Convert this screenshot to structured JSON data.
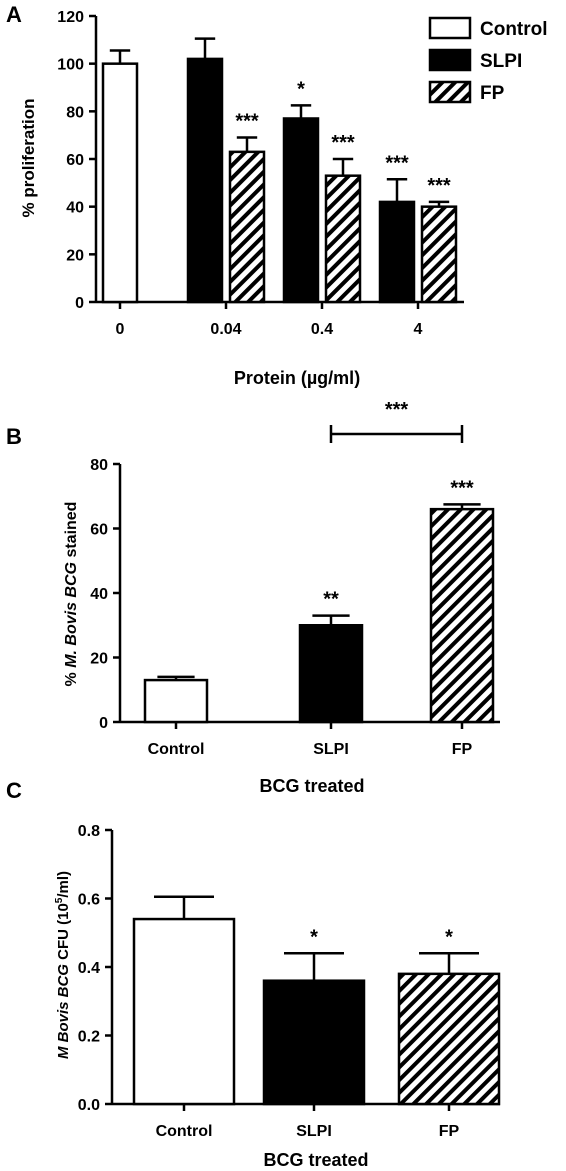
{
  "colors": {
    "ink": "#000000",
    "paper": "#ffffff"
  },
  "chart_data": [
    {
      "panel": "A",
      "type": "bar",
      "xlabel": "Protein (µg/ml)",
      "ylabel": "% proliferation",
      "ylim": [
        0,
        120
      ],
      "yticks": [
        0,
        20,
        40,
        60,
        80,
        100,
        120
      ],
      "categories": [
        "0",
        "0.04",
        "0.4",
        "4"
      ],
      "legend_position": "top-right",
      "series": [
        {
          "name": "Control",
          "fill": "white",
          "values": [
            100,
            null,
            null,
            null
          ],
          "errors": [
            5.5,
            null,
            null,
            null
          ],
          "sig": [
            "",
            "",
            "",
            ""
          ]
        },
        {
          "name": "SLPI",
          "fill": "black",
          "values": [
            null,
            102,
            77,
            42
          ],
          "errors": [
            null,
            8.5,
            5.5,
            9.5
          ],
          "sig": [
            "",
            "",
            "*",
            "***"
          ]
        },
        {
          "name": "FP",
          "fill": "hatch",
          "values": [
            null,
            63,
            53,
            40
          ],
          "errors": [
            null,
            6,
            7,
            2
          ],
          "sig": [
            "",
            "***",
            "***",
            "***"
          ]
        }
      ]
    },
    {
      "panel": "B",
      "type": "bar",
      "xlabel": "BCG treated",
      "ylabel_parts": [
        "% ",
        "M. Bovis BCG",
        " stained"
      ],
      "ylim": [
        0,
        80
      ],
      "yticks": [
        0,
        20,
        40,
        60,
        80
      ],
      "categories": [
        "Control",
        "SLPI",
        "FP"
      ],
      "fills": [
        "white",
        "black",
        "hatch"
      ],
      "values": [
        13,
        30,
        66
      ],
      "errors": [
        1,
        3,
        1.5
      ],
      "sig": [
        "",
        "**",
        "***"
      ],
      "bracket": {
        "from": "SLPI",
        "to": "FP",
        "label": "***"
      }
    },
    {
      "panel": "C",
      "type": "bar",
      "xlabel": "BCG treated",
      "ylabel_parts": [
        "M Bovis BCG",
        " CFU (10",
        "5",
        "/ml)"
      ],
      "ylim": [
        0,
        0.8
      ],
      "yticks": [
        "0.0",
        "0.2",
        "0.4",
        "0.6",
        "0.8"
      ],
      "categories": [
        "Control",
        "SLPI",
        "FP"
      ],
      "fills": [
        "white",
        "black",
        "hatch"
      ],
      "values": [
        0.54,
        0.36,
        0.38
      ],
      "errors": [
        0.065,
        0.08,
        0.06
      ],
      "sig": [
        "",
        "*",
        "*"
      ]
    }
  ]
}
